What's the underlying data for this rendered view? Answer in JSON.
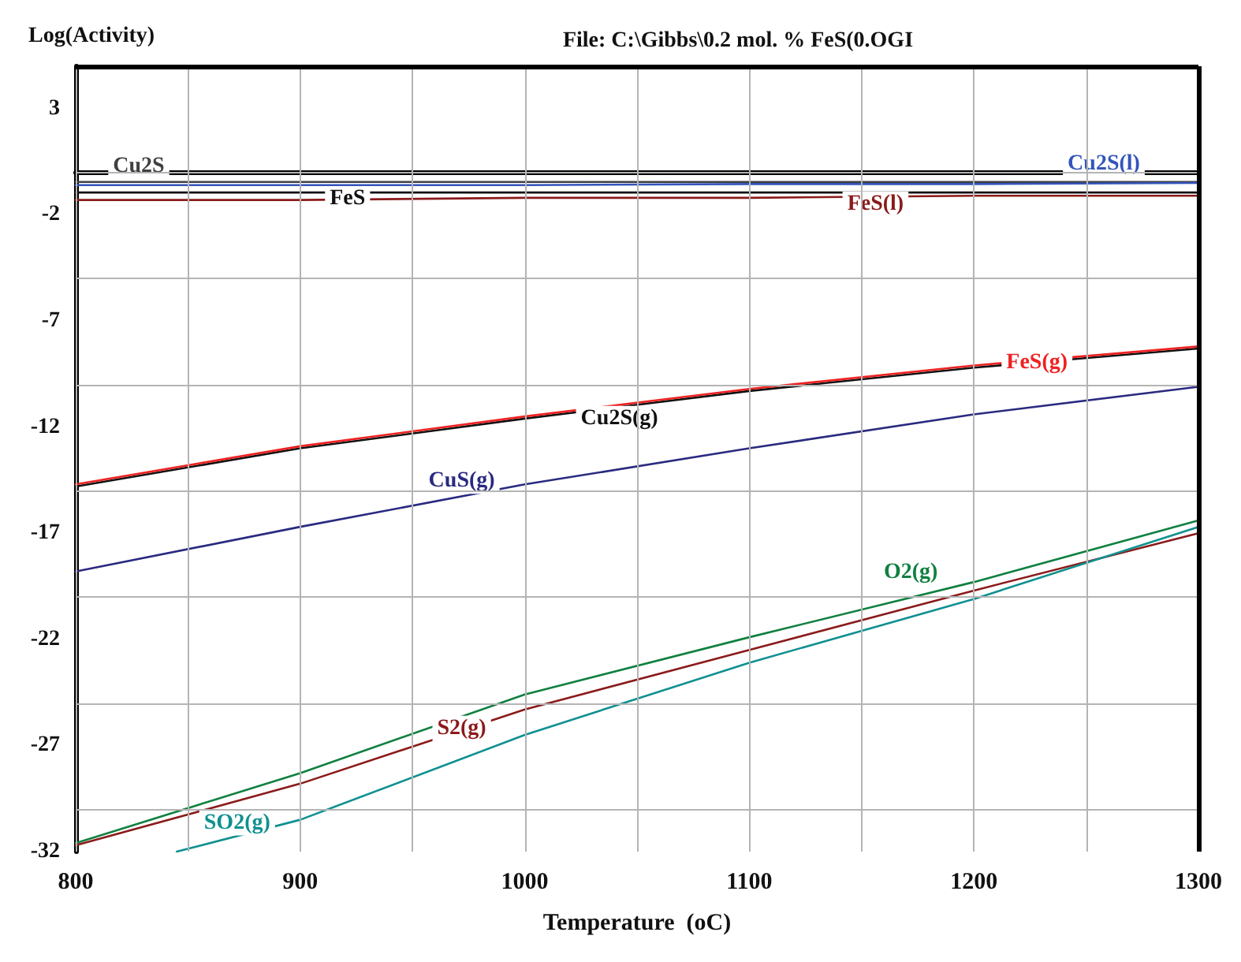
{
  "chart_data": {
    "type": "line",
    "title": "File: C:\\Gibbs\\0.2 mol. % FeS(0.OGI",
    "xlabel": "Temperature  (oC)",
    "ylabel": "Log(Activity)",
    "x": [
      800,
      900,
      1000,
      1100,
      1200,
      1300
    ],
    "series": [
      {
        "name": "Cu2S",
        "color": "#404040",
        "values": [
          -0.45,
          -0.45,
          -0.45,
          -0.45,
          -0.45,
          -0.45
        ]
      },
      {
        "name": "FeS",
        "color": "#111111",
        "values": [
          -0.95,
          -0.95,
          -0.95,
          -0.95,
          -0.95,
          -0.95
        ]
      },
      {
        "name": "Cu2S(l)",
        "color": "#3355bb",
        "values": [
          -0.6,
          -0.6,
          -0.6,
          -0.55,
          -0.55,
          -0.5
        ]
      },
      {
        "name": "FeS(l)",
        "color": "#8b1a1a",
        "values": [
          -1.3,
          -1.3,
          -1.2,
          -1.2,
          -1.1,
          -1.1
        ]
      },
      {
        "name": "Cu2S(g)",
        "color": "#111111",
        "values": [
          -14.8,
          -13.0,
          -11.6,
          -10.3,
          -9.2,
          -8.3
        ]
      },
      {
        "name": "FeS(g)",
        "color": "#ee2222",
        "values": [
          -14.7,
          -12.9,
          -11.5,
          -10.2,
          -9.1,
          -8.2
        ]
      },
      {
        "name": "CuS(g)",
        "color": "#2a2a80",
        "values": [
          -18.8,
          -16.7,
          -14.7,
          -13.0,
          -11.4,
          -10.1
        ]
      },
      {
        "name": "O2(g)",
        "color": "#108040",
        "values": [
          -31.6,
          -28.3,
          -24.6,
          -21.9,
          -19.3,
          -16.4
        ]
      },
      {
        "name": "S2(g)",
        "color": "#8b1a1a",
        "values": [
          -31.7,
          -28.8,
          -25.3,
          -22.5,
          -19.7,
          -17.0
        ]
      },
      {
        "name": "SO2(g)",
        "color": "#109090",
        "x": [
          845,
          900,
          1000,
          1100,
          1200,
          1300
        ],
        "values": [
          -32,
          -30.5,
          -26.5,
          -23.1,
          -20.1,
          -16.7
        ]
      }
    ],
    "xlim": [
      800,
      1300
    ],
    "xticks": [
      800,
      {
        "value": 850,
        "label": null
      },
      900,
      {
        "value": 950,
        "label": null
      },
      1000,
      {
        "value": 1050,
        "label": null
      },
      1100,
      {
        "value": 1150,
        "label": null
      },
      1200,
      {
        "value": 1250,
        "label": null
      },
      1300
    ],
    "ylim": [
      -32,
      5
    ],
    "yticks": [
      3,
      {
        "value": 0,
        "label": null
      },
      -2,
      {
        "value": -5,
        "label": null
      },
      -7,
      {
        "value": -10,
        "label": null
      },
      -12,
      {
        "value": -15,
        "label": null
      },
      -17,
      {
        "value": -20,
        "label": null
      },
      -22,
      {
        "value": -25,
        "label": null
      },
      -27,
      {
        "value": -30,
        "label": null
      },
      -32
    ],
    "grid": true,
    "legend": false,
    "marker": "none",
    "line_style": "solid"
  }
}
